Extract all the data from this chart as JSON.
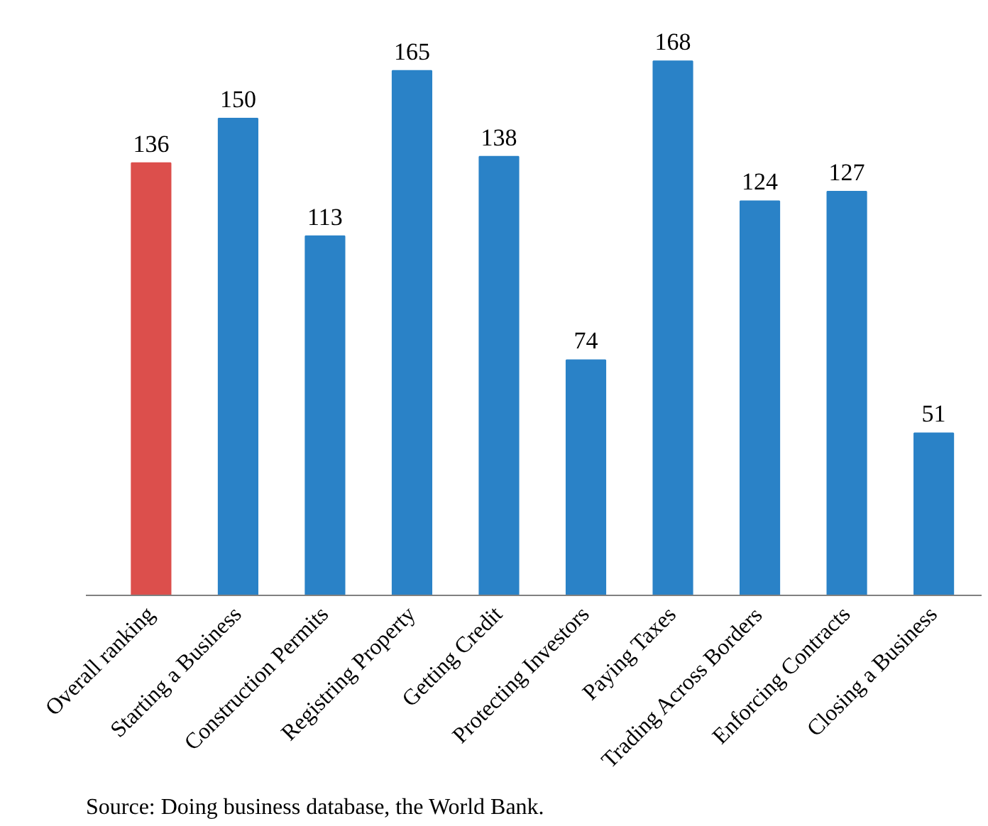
{
  "chart_data": {
    "type": "bar",
    "categories": [
      "Overall ranking",
      "Starting a Business",
      "Construction Permits",
      "Registring Property",
      "Getting Credit",
      "Protecting Investors",
      "Paying Taxes",
      "Trading Across Borders",
      "Enforcing Contracts",
      "Closing a Business"
    ],
    "values": [
      136,
      150,
      113,
      165,
      138,
      74,
      168,
      124,
      127,
      51
    ],
    "colors": [
      "#dc4f4c",
      "#2a82c7",
      "#2a82c7",
      "#2a82c7",
      "#2a82c7",
      "#2a82c7",
      "#2a82c7",
      "#2a82c7",
      "#2a82c7",
      "#2a82c7"
    ],
    "data_labels": true,
    "grid": false,
    "annotations": [
      "Source: Doing business database, the World Bank."
    ]
  }
}
